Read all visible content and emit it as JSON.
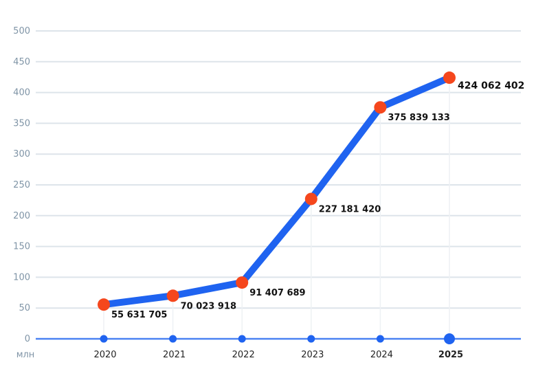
{
  "chart_data": {
    "type": "line",
    "unit_label": "млн",
    "categories": [
      "2020",
      "2021",
      "2022",
      "2023",
      "2024",
      "2025"
    ],
    "values": [
      55.631705,
      70.023918,
      91.407689,
      227.18142,
      375.839133,
      424.062402
    ],
    "value_labels": [
      "55 631 705",
      "70 023 918",
      "91 407 689",
      "227 181 420",
      "375 839 133",
      "424 062 402"
    ],
    "ylim": [
      0,
      500
    ],
    "yticks": [
      "0",
      "50",
      "100",
      "150",
      "200",
      "250",
      "300",
      "350",
      "400",
      "450",
      "500"
    ],
    "grid": true,
    "legend": "none",
    "highlight_category": "2025",
    "colors": {
      "line": "#1f63f0",
      "marker": "#f5471d",
      "axis_dot": "#1f63f0",
      "grid": "#dde4ea",
      "tick_text": "#7f94a6"
    }
  }
}
